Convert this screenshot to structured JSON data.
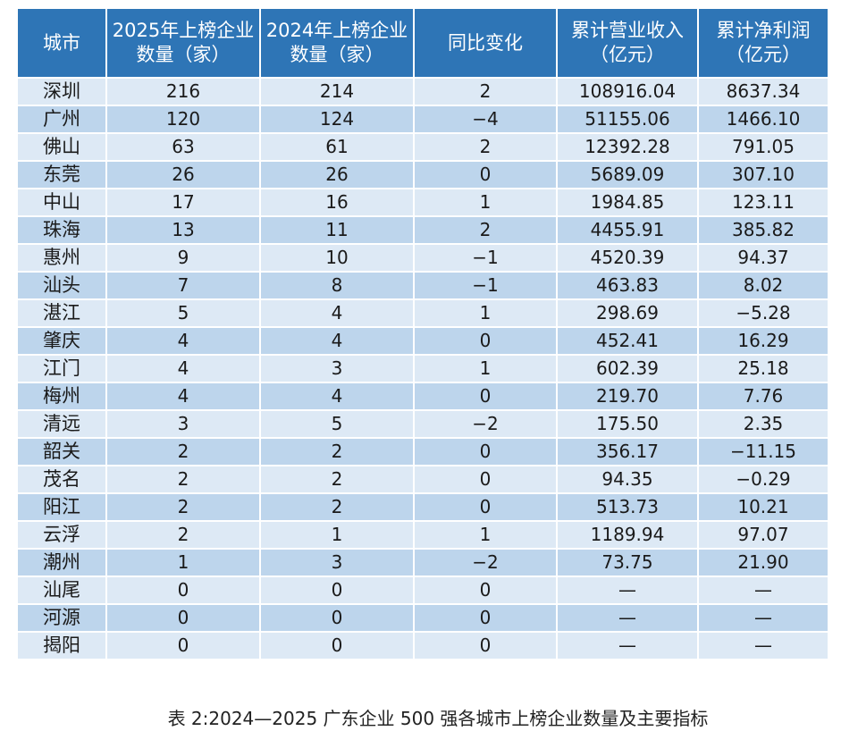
{
  "table": {
    "headers": [
      "城市",
      "2025年上榜企业数量（家）",
      "2024年上榜企业数量（家）",
      "同比变化",
      "累计营业收入（亿元）",
      "累计净利润（亿元）"
    ],
    "rows": [
      [
        "深圳",
        "216",
        "214",
        "2",
        "108916.04",
        "8637.34"
      ],
      [
        "广州",
        "120",
        "124",
        "−4",
        "51155.06",
        "1466.10"
      ],
      [
        "佛山",
        "63",
        "61",
        "2",
        "12392.28",
        "791.05"
      ],
      [
        "东莞",
        "26",
        "26",
        "0",
        "5689.09",
        "307.10"
      ],
      [
        "中山",
        "17",
        "16",
        "1",
        "1984.85",
        "123.11"
      ],
      [
        "珠海",
        "13",
        "11",
        "2",
        "4455.91",
        "385.82"
      ],
      [
        "惠州",
        "9",
        "10",
        "−1",
        "4520.39",
        "94.37"
      ],
      [
        "汕头",
        "7",
        "8",
        "−1",
        "463.83",
        "8.02"
      ],
      [
        "湛江",
        "5",
        "4",
        "1",
        "298.69",
        "−5.28"
      ],
      [
        "肇庆",
        "4",
        "4",
        "0",
        "452.41",
        "16.29"
      ],
      [
        "江门",
        "4",
        "3",
        "1",
        "602.39",
        "25.18"
      ],
      [
        "梅州",
        "4",
        "4",
        "0",
        "219.70",
        "7.76"
      ],
      [
        "清远",
        "3",
        "5",
        "−2",
        "175.50",
        "2.35"
      ],
      [
        "韶关",
        "2",
        "2",
        "0",
        "356.17",
        "−11.15"
      ],
      [
        "茂名",
        "2",
        "2",
        "0",
        "94.35",
        "−0.29"
      ],
      [
        "阳江",
        "2",
        "2",
        "0",
        "513.73",
        "10.21"
      ],
      [
        "云浮",
        "2",
        "1",
        "1",
        "1189.94",
        "97.07"
      ],
      [
        "潮州",
        "1",
        "3",
        "−2",
        "73.75",
        "21.90"
      ],
      [
        "汕尾",
        "0",
        "0",
        "0",
        "—",
        "—"
      ],
      [
        "河源",
        "0",
        "0",
        "0",
        "—",
        "—"
      ],
      [
        "揭阳",
        "0",
        "0",
        "0",
        "—",
        "—"
      ]
    ]
  },
  "caption": "表 2:2024—2025 广东企业 500 强各城市上榜企业数量及主要指标",
  "colors": {
    "header": "#2e75b6",
    "row_light": "#dde9f5",
    "row_dark": "#bdd5ec"
  }
}
